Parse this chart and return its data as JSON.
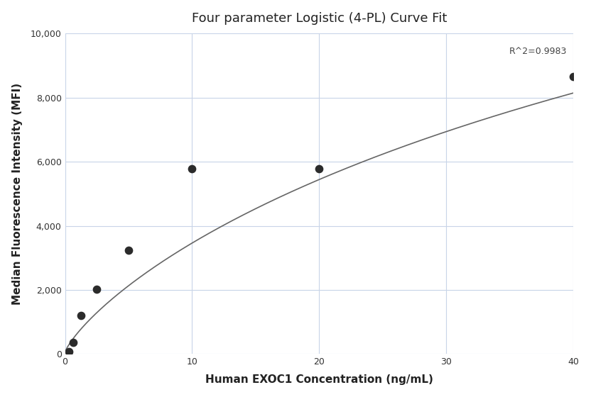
{
  "title": "Four parameter Logistic (4-PL) Curve Fit",
  "xlabel": "Human EXOC1 Concentration (ng/mL)",
  "ylabel": "Median Fluorescence Intensity (MFI)",
  "scatter_x": [
    0.313,
    0.625,
    1.25,
    2.5,
    5,
    10,
    20,
    40
  ],
  "scatter_y": [
    80,
    370,
    1200,
    2020,
    3240,
    5790,
    5790,
    8650
  ],
  "xlim": [
    0,
    40
  ],
  "ylim": [
    0,
    10000
  ],
  "yticks": [
    0,
    2000,
    4000,
    6000,
    8000,
    10000
  ],
  "ytick_labels": [
    "0",
    "2,000",
    "4,000",
    "6,000",
    "8,000",
    "10,000"
  ],
  "xticks": [
    0,
    10,
    20,
    30,
    40
  ],
  "r_squared": "R^2=0.9983",
  "r_squared_x": 39.5,
  "r_squared_y": 9300,
  "dot_color": "#2b2b2b",
  "line_color": "#666666",
  "grid_color": "#c8d4e8",
  "background_color": "#ffffff",
  "title_fontsize": 13,
  "label_fontsize": 11
}
